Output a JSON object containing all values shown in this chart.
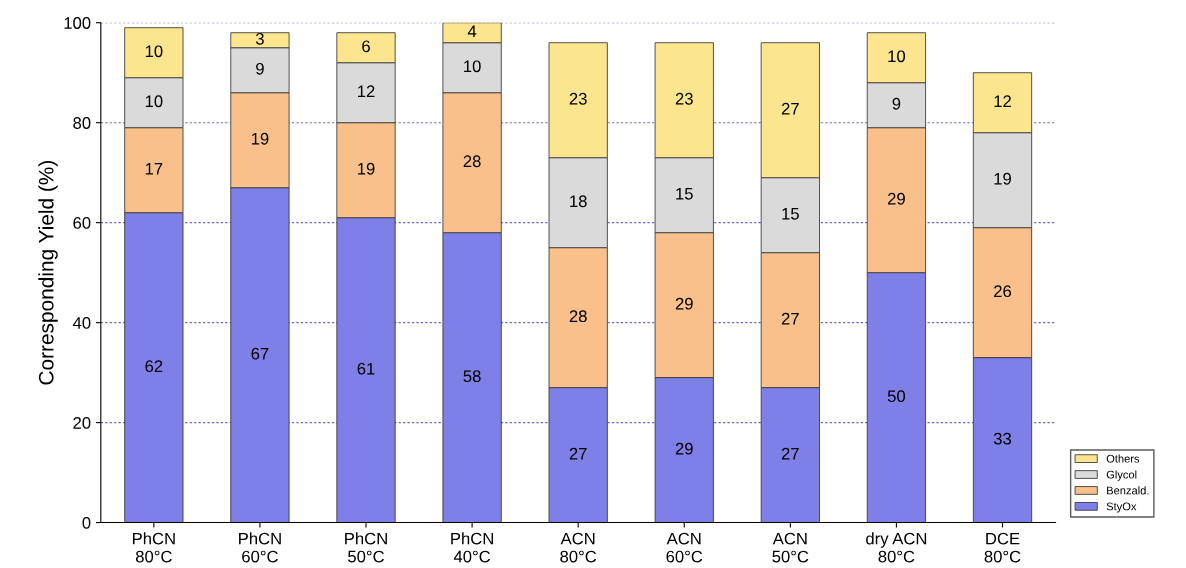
{
  "chart_data": {
    "type": "bar",
    "stacked": true,
    "ylabel": "Corresponding Yield (%)",
    "categories": [
      "PhCN\n80°C",
      "PhCN\n60°C",
      "PhCN\n50°C",
      "PhCN\n40°C",
      "ACN\n80°C",
      "ACN\n60°C",
      "ACN\n50°C",
      "dry ACN\n80°C",
      "DCE\n80°C"
    ],
    "series": [
      {
        "name": "StyOx",
        "color": "#7f7fe8",
        "values": [
          62,
          67,
          61,
          58,
          27,
          29,
          27,
          50,
          33
        ]
      },
      {
        "name": "Benzald.",
        "color": "#f9c08c",
        "values": [
          17,
          19,
          19,
          28,
          28,
          29,
          27,
          29,
          26
        ]
      },
      {
        "name": "Glycol",
        "color": "#dadada",
        "values": [
          10,
          9,
          12,
          10,
          18,
          15,
          15,
          9,
          19
        ]
      },
      {
        "name": "Others",
        "color": "#fbe58e",
        "values": [
          10,
          3,
          6,
          4,
          23,
          23,
          27,
          10,
          12
        ]
      }
    ],
    "ylim": [
      0,
      100
    ],
    "yticks": [
      0,
      20,
      40,
      60,
      80,
      100
    ],
    "grid": "y",
    "legend": "bottom right",
    "data_labels": true
  }
}
